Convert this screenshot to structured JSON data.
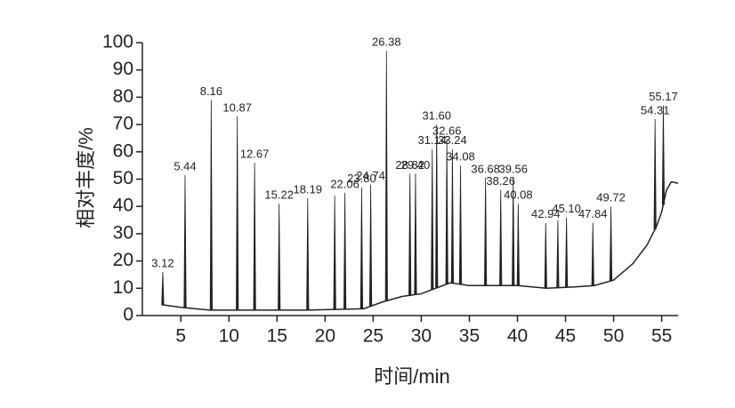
{
  "chart_data": {
    "type": "chromatogram",
    "x_label": "时间/min",
    "y_label": "相对丰度/%",
    "xlim": [
      1,
      56.7
    ],
    "ylim": [
      0,
      100
    ],
    "xticks": [
      5,
      10,
      15,
      20,
      25,
      30,
      35,
      40,
      45,
      50,
      55
    ],
    "yticks": [
      0,
      10,
      20,
      30,
      40,
      50,
      60,
      70,
      80,
      90,
      100
    ],
    "color": "#222222",
    "baseline": {
      "x": [
        3,
        5,
        8,
        12,
        18,
        24,
        26,
        28,
        30,
        31.5,
        33,
        35,
        38,
        40,
        43,
        46,
        48,
        50,
        52,
        53.5,
        54.5,
        55,
        55.5,
        56,
        56.7
      ],
      "values": [
        4,
        3,
        2,
        2,
        2,
        2.5,
        5,
        7,
        8,
        10,
        12,
        11,
        11,
        11,
        10,
        10.5,
        11,
        13,
        19,
        26,
        33,
        38,
        46,
        49,
        48.5
      ]
    },
    "peaks": {
      "x": [
        3.12,
        5.44,
        8.16,
        10.87,
        12.67,
        15.22,
        18.19,
        21.0,
        22.06,
        23.8,
        24.74,
        26.38,
        28.82,
        29.4,
        31.14,
        31.6,
        32.66,
        33.24,
        34.08,
        36.68,
        38.26,
        39.56,
        40.08,
        42.94,
        44.2,
        45.1,
        47.84,
        49.72,
        54.31,
        55.17
      ],
      "values": [
        16,
        51.5,
        79,
        73,
        56,
        41,
        43,
        44,
        45,
        47,
        48,
        97,
        52,
        52,
        61,
        70,
        64.5,
        61,
        55,
        50.5,
        46,
        50.5,
        41,
        34,
        35,
        36,
        34,
        40,
        72,
        77
      ],
      "labels": [
        "3.12",
        "5.44",
        "8.16",
        "10.87",
        "12.67",
        "15.22",
        "18.19",
        null,
        "22.06",
        "23.80",
        "24.74",
        "26.38",
        "28.82",
        "29.40",
        "31.14",
        "31.60",
        "32.66",
        "33.24",
        "34.08",
        "36.68",
        "38.26",
        "39.56",
        "40.08",
        "42.94",
        null,
        "45.10",
        "47.84",
        "49.72",
        "54.31",
        "55.17"
      ]
    }
  }
}
